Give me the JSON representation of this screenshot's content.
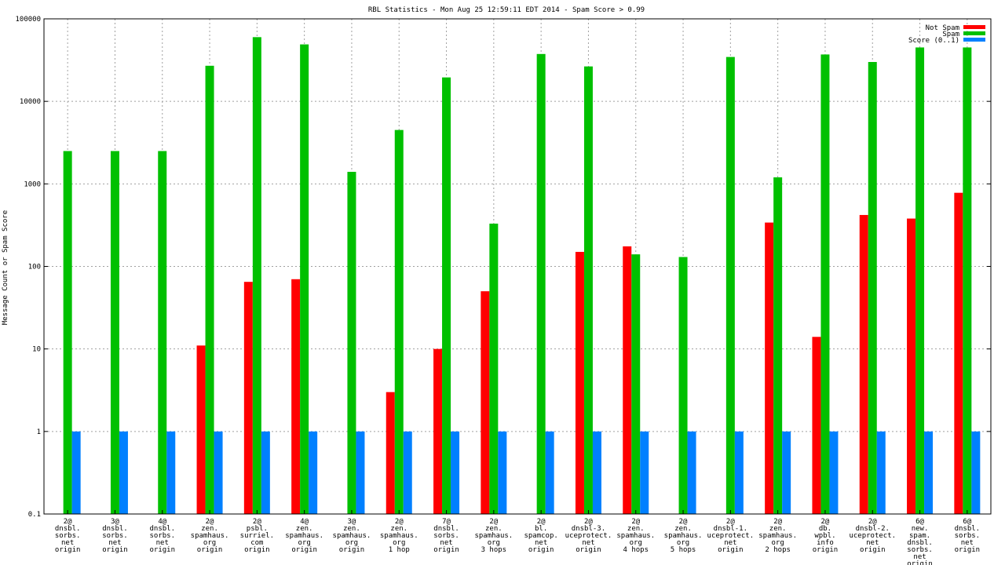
{
  "chart_data": {
    "type": "bar",
    "title": "RBL Statistics - Mon Aug 25 12:59:11 EDT 2014 - Spam Score > 0.99",
    "xlabel": "",
    "ylabel": "Message Count or Spam Score",
    "y_scale": "log",
    "ylim": [
      0.1,
      100000
    ],
    "y_ticks": [
      "0.1",
      "1",
      "10",
      "100",
      "1000",
      "10000",
      "100000"
    ],
    "grid": true,
    "legend_position": "top-right",
    "categories": [
      [
        "2@",
        "dnsbl.",
        "sorbs.",
        "net",
        "origin"
      ],
      [
        "3@",
        "dnsbl.",
        "sorbs.",
        "net",
        "origin"
      ],
      [
        "4@",
        "dnsbl.",
        "sorbs.",
        "net",
        "origin"
      ],
      [
        "2@",
        "zen.",
        "spamhaus.",
        "org",
        "origin"
      ],
      [
        "2@",
        "psbl.",
        "surriel.",
        "com",
        "origin"
      ],
      [
        "4@",
        "zen.",
        "spamhaus.",
        "org",
        "origin"
      ],
      [
        "3@",
        "zen.",
        "spamhaus.",
        "org",
        "origin"
      ],
      [
        "2@",
        "zen.",
        "spamhaus.",
        "org",
        "1 hop"
      ],
      [
        "7@",
        "dnsbl.",
        "sorbs.",
        "net",
        "origin"
      ],
      [
        "2@",
        "zen.",
        "spamhaus.",
        "org",
        "3 hops"
      ],
      [
        "2@",
        "bl.",
        "spamcop.",
        "net",
        "origin"
      ],
      [
        "2@",
        "dnsbl-3.",
        "uceprotect.",
        "net",
        "origin"
      ],
      [
        "2@",
        "zen.",
        "spamhaus.",
        "org",
        "4 hops"
      ],
      [
        "2@",
        "zen.",
        "spamhaus.",
        "org",
        "5 hops"
      ],
      [
        "2@",
        "dnsbl-1.",
        "uceprotect.",
        "net",
        "origin"
      ],
      [
        "2@",
        "zen.",
        "spamhaus.",
        "org",
        "2 hops"
      ],
      [
        "2@",
        "db.",
        "wpbl.",
        "info",
        "origin"
      ],
      [
        "2@",
        "dnsbl-2.",
        "uceprotect.",
        "net",
        "origin"
      ],
      [
        "6@",
        "new.",
        "spam.",
        "dnsbl.",
        "sorbs.",
        "net",
        "origin"
      ],
      [
        "6@",
        "dnsbl.",
        "sorbs.",
        "net",
        "origin"
      ]
    ],
    "series": [
      {
        "name": "Not Spam",
        "color": "#ff0000",
        "values": [
          null,
          null,
          null,
          11,
          65,
          70,
          null,
          3,
          10,
          50,
          null,
          150,
          175,
          null,
          null,
          340,
          14,
          420,
          380,
          780
        ]
      },
      {
        "name": "Spam",
        "color": "#00c000",
        "values": [
          2500,
          2500,
          2500,
          27000,
          60000,
          49000,
          1400,
          4500,
          19500,
          330,
          37500,
          26500,
          140,
          130,
          34500,
          1200,
          37000,
          30000,
          45000,
          45000
        ]
      },
      {
        "name": "Score (0..1)",
        "color": "#0080ff",
        "values": [
          1,
          1,
          1,
          1,
          1,
          1,
          1,
          1,
          1,
          1,
          1,
          1,
          1,
          1,
          1,
          1,
          1,
          1,
          1,
          1
        ]
      }
    ]
  }
}
